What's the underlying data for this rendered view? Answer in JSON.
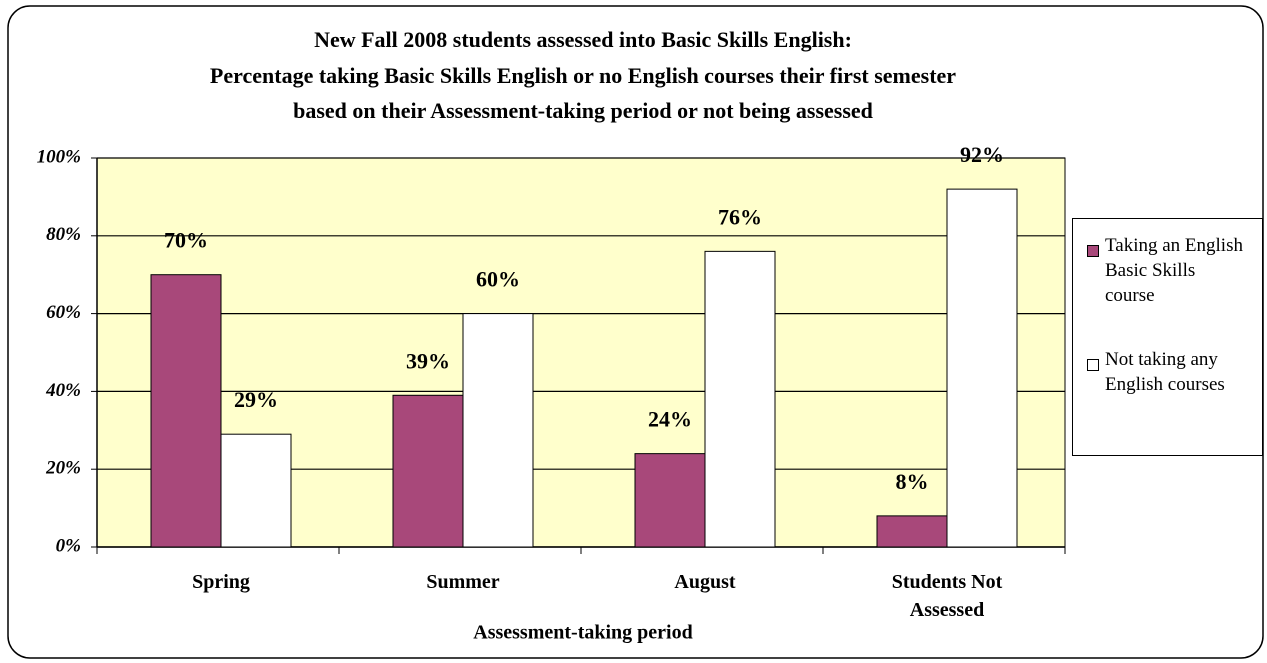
{
  "chart_data": {
    "type": "bar",
    "title": [
      "New Fall 2008 students assessed into Basic Skills English:",
      "Percentage taking Basic Skills English or no English courses their first semester",
      "based on their Assessment-taking period or not being assessed"
    ],
    "x_label": "Assessment-taking period",
    "categories": [
      "Spring",
      "Summer",
      "August",
      "Students Not Assessed"
    ],
    "series": [
      {
        "name": "Taking an English Basic Skills course",
        "color": "#a8487a",
        "values": [
          70,
          39,
          24,
          8
        ],
        "value_labels": [
          "70%",
          "39%",
          "24%",
          "8%"
        ]
      },
      {
        "name": "Not taking any English courses",
        "color": "#ffffff",
        "values": [
          29,
          60,
          76,
          92
        ],
        "value_labels": [
          "29%",
          "60%",
          "76%",
          "92%"
        ]
      }
    ],
    "ylim": [
      0,
      100
    ],
    "yticks": [
      {
        "value": 0,
        "label": "0%"
      },
      {
        "value": 20,
        "label": "20%"
      },
      {
        "value": 40,
        "label": "40%"
      },
      {
        "value": 60,
        "label": "60%"
      },
      {
        "value": 80,
        "label": "80%"
      },
      {
        "value": 100,
        "label": "100%"
      }
    ],
    "grid": true,
    "legend": "right",
    "plot_background": "#ffffcc"
  }
}
